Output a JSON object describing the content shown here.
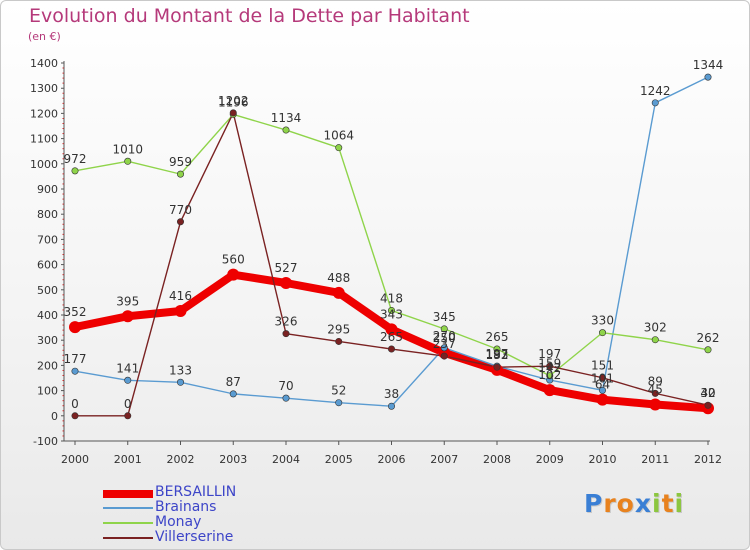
{
  "title": "Evolution du Montant de la Dette par Habitant",
  "subtitle": "(en €)",
  "brand": {
    "text": "Proxiti",
    "letters": [
      {
        "ch": "P",
        "color": "#3a7fd5"
      },
      {
        "ch": "r",
        "color": "#e8821e"
      },
      {
        "ch": "o",
        "color": "#e8821e"
      },
      {
        "ch": "x",
        "color": "#3a7fd5"
      },
      {
        "ch": "i",
        "color": "#8cc63f"
      },
      {
        "ch": "t",
        "color": "#e8821e"
      },
      {
        "ch": "i",
        "color": "#8cc63f"
      }
    ]
  },
  "chart_data": {
    "type": "line",
    "x": [
      "2000",
      "2001",
      "2002",
      "2003",
      "2004",
      "2005",
      "2006",
      "2007",
      "2008",
      "2009",
      "2010",
      "2011",
      "2012"
    ],
    "ylim": [
      -100,
      1400
    ],
    "yticks": [
      -100,
      0,
      100,
      200,
      300,
      400,
      500,
      600,
      700,
      800,
      900,
      1000,
      1100,
      1200,
      1300,
      1400
    ],
    "grid": false,
    "legend_position": "bottom-left",
    "series": [
      {
        "name": "BERSAILLIN",
        "color": "#ee0000",
        "bold": true,
        "values": [
          352,
          395,
          416,
          560,
          527,
          488,
          343,
          250,
          182,
          102,
          64,
          45,
          30
        ],
        "labels": [
          "352",
          "395",
          "416",
          "560",
          "527",
          "488",
          "343",
          "250",
          "182",
          "102",
          "64",
          "45",
          "30"
        ]
      },
      {
        "name": "Brainans",
        "color": "#5a9bd1",
        "bold": false,
        "values": [
          177,
          141,
          133,
          87,
          70,
          52,
          38,
          270,
          197,
          142,
          101,
          1242,
          1344
        ],
        "labels": [
          "177",
          "141",
          "133",
          "87",
          "70",
          "52",
          "38",
          "270",
          "197",
          "142",
          "101",
          "1242",
          "1344"
        ]
      },
      {
        "name": "Monay",
        "color": "#8fd44a",
        "bold": false,
        "values": [
          972,
          1010,
          959,
          1196,
          1134,
          1064,
          418,
          345,
          265,
          159,
          330,
          302,
          262
        ],
        "labels": [
          "972",
          "1010",
          "959",
          "1196",
          "1134",
          "1064",
          "418",
          "345",
          "265",
          "159",
          "330",
          "302",
          "262"
        ]
      },
      {
        "name": "Villerserine",
        "color": "#7a2222",
        "bold": false,
        "values": [
          0,
          0,
          770,
          1202,
          326,
          295,
          265,
          237,
          193,
          197,
          151,
          89,
          42
        ],
        "labels": [
          "0",
          "0",
          "770",
          "1202",
          "326",
          "295",
          "265",
          "237",
          "193",
          "197",
          "151",
          "89",
          "42"
        ]
      }
    ]
  }
}
